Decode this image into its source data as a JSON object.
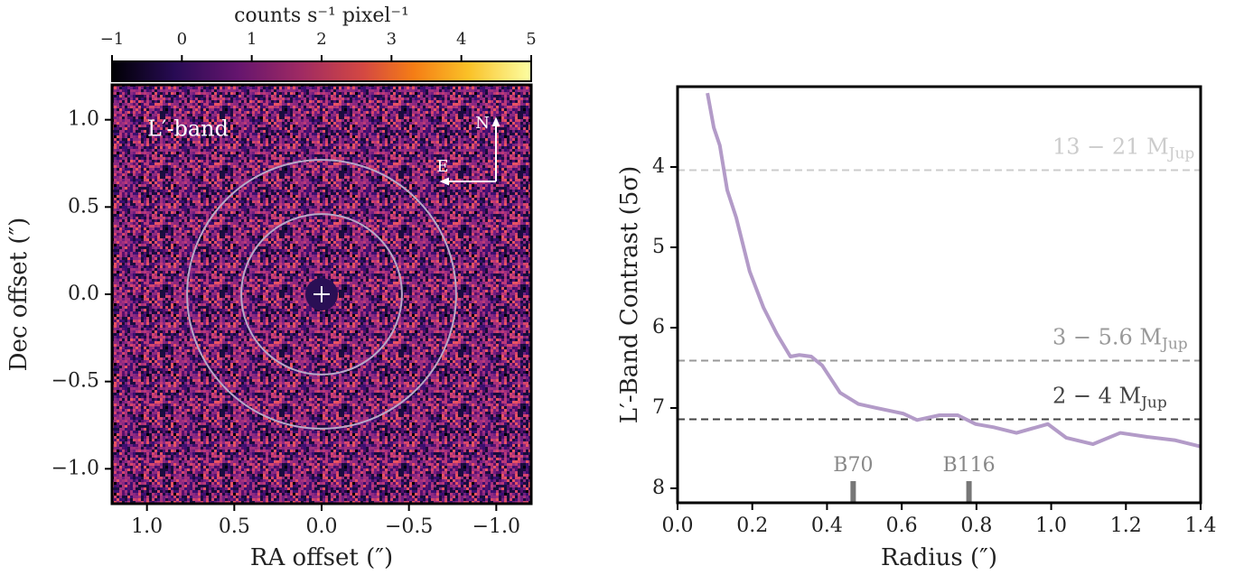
{
  "chart_data": [
    {
      "type": "image",
      "xlabel": "RA offset  (″)",
      "ylabel": "Dec offset  (″)",
      "xlim": [
        1.2,
        -1.2
      ],
      "ylim": [
        -1.2,
        1.2
      ],
      "xticks": [
        {
          "value": 1,
          "label": "1.0"
        },
        0.5,
        {
          "value": 0,
          "label": "0.0"
        },
        {
          "value": -0.5,
          "label": "−0.5"
        },
        {
          "value": -1,
          "label": "−1.0"
        }
      ],
      "yticks": [
        {
          "value": 1,
          "label": "1.0"
        },
        0.5,
        {
          "value": 0,
          "label": "0.0"
        },
        {
          "value": -0.5,
          "label": "−0.5"
        },
        {
          "value": -1,
          "label": "−1.0"
        }
      ],
      "annotations": {
        "band": "L′-band",
        "north": "N",
        "east": "E"
      },
      "circles": [
        0.46,
        0.77
      ],
      "colorbar": {
        "label": "counts s⁻¹ pixel⁻¹",
        "lim": [
          -1,
          5
        ],
        "ticks": [
          {
            "value": -1,
            "label": "−1"
          },
          0,
          1,
          2,
          3,
          4,
          5
        ]
      }
    },
    {
      "type": "line",
      "xlabel": "Radius  (″)",
      "ylabel": "L′-Band Contrast (5σ)",
      "xlim": [
        0,
        1.4
      ],
      "ylim": [
        8.18,
        3.0
      ],
      "xticks": [
        {
          "value": 0,
          "label": "0.0"
        },
        0.2,
        0.4,
        0.6,
        0.8,
        {
          "value": 1,
          "label": "1.0"
        },
        1.2,
        1.4
      ],
      "yticks": [
        4,
        5,
        6,
        7,
        8
      ],
      "color": "#b39bc8",
      "x": [
        0.08,
        0.097,
        0.113,
        0.133,
        0.157,
        0.193,
        0.23,
        0.266,
        0.302,
        0.326,
        0.358,
        0.387,
        0.435,
        0.484,
        0.532,
        0.604,
        0.641,
        0.701,
        0.75,
        0.798,
        0.846,
        0.907,
        0.991,
        1.04,
        1.112,
        1.185,
        1.257,
        1.33,
        1.4
      ],
      "values": [
        3.08,
        3.51,
        3.73,
        4.29,
        4.63,
        5.3,
        5.75,
        6.08,
        6.36,
        6.34,
        6.36,
        6.47,
        6.81,
        6.95,
        7.0,
        7.07,
        7.15,
        7.09,
        7.09,
        7.2,
        7.24,
        7.31,
        7.2,
        7.37,
        7.45,
        7.31,
        7.36,
        7.4,
        7.48
      ],
      "hlines": [
        {
          "value": 4.04,
          "label": "13 − 21 M",
          "label_sub": "Jup",
          "color": "#cccccc"
        },
        {
          "value": 6.41,
          "label": "3 − 5.6 M",
          "label_sub": "Jup",
          "color": "#999999"
        },
        {
          "value": 7.14,
          "label": "2 − 4 M",
          "label_sub": "Jup",
          "color": "#444444"
        }
      ],
      "markers": [
        {
          "label": "B70",
          "x": 0.47
        },
        {
          "label": "B116",
          "x": 0.78
        }
      ]
    }
  ]
}
